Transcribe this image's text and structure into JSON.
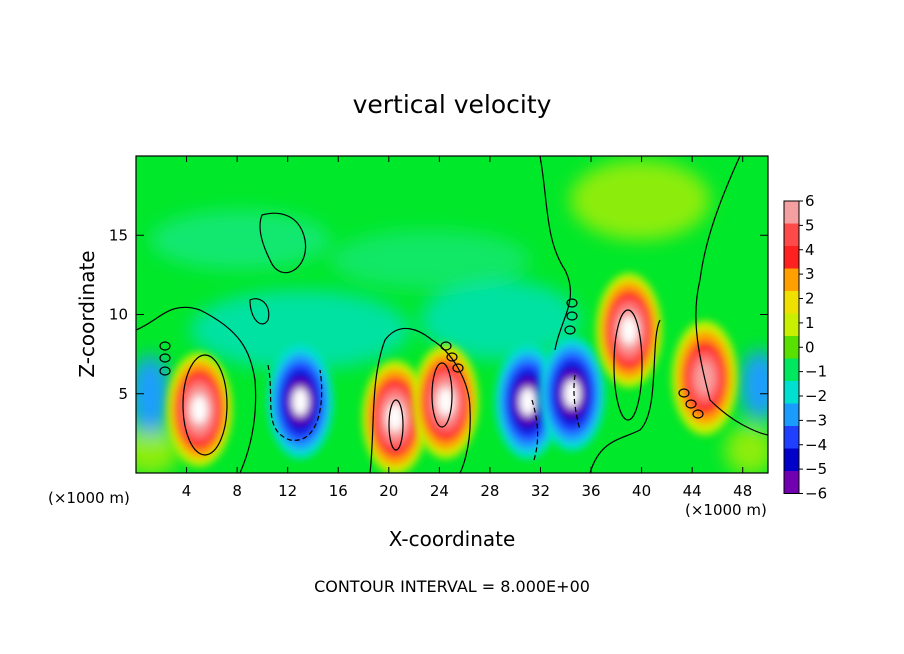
{
  "chart_data": {
    "type": "heatmap",
    "title": "vertical velocity",
    "xlabel": "X-coordinate",
    "ylabel": "Z-coordinate",
    "x_unit_note_left": "(×1000 m)",
    "x_unit_note_right": "(×1000 m)",
    "x_ticks": [
      4,
      8,
      12,
      16,
      20,
      24,
      28,
      32,
      36,
      40,
      44,
      48
    ],
    "y_ticks": [
      5,
      10,
      15
    ],
    "xlim": [
      0,
      50
    ],
    "ylim": [
      0,
      20
    ],
    "colorbar": {
      "ticks": [
        6,
        5,
        4,
        3,
        2,
        1,
        0,
        -1,
        -2,
        -3,
        -4,
        -5,
        -6
      ],
      "tick_labels": [
        "6",
        "5",
        "4",
        "3",
        "2",
        "1",
        "0",
        "−1",
        "−2",
        "−3",
        "−4",
        "−5",
        "−6"
      ],
      "colors": [
        "#f5a0a0",
        "#ff4a4a",
        "#ff2020",
        "#ffa000",
        "#f0e000",
        "#c8f000",
        "#58e000",
        "#00e860",
        "#00e0d0",
        "#1a9cff",
        "#2040ff",
        "#0000c8",
        "#7000b0"
      ],
      "above_max_color": "#ffffff"
    },
    "contour_interval": "CONTOUR INTERVAL = 8.000E+00",
    "cells": [
      {
        "x": 5,
        "z": 4,
        "w": 6.4,
        "sign": 1
      },
      {
        "x": 13,
        "z": 4.5,
        "w": -6.2,
        "sign": -1
      },
      {
        "x": 20.5,
        "z": 3.5,
        "w": 6.3,
        "sign": 1
      },
      {
        "x": 24.5,
        "z": 4.5,
        "w": 6.4,
        "sign": 1
      },
      {
        "x": 31,
        "z": 4.5,
        "w": -6.2,
        "sign": -1
      },
      {
        "x": 34.5,
        "z": 5,
        "w": -6.1,
        "sign": -1
      },
      {
        "x": 39,
        "z": 9,
        "w": 6.5,
        "sign": 1
      },
      {
        "x": 45,
        "z": 6,
        "w": 4.5,
        "sign": 1
      }
    ]
  }
}
